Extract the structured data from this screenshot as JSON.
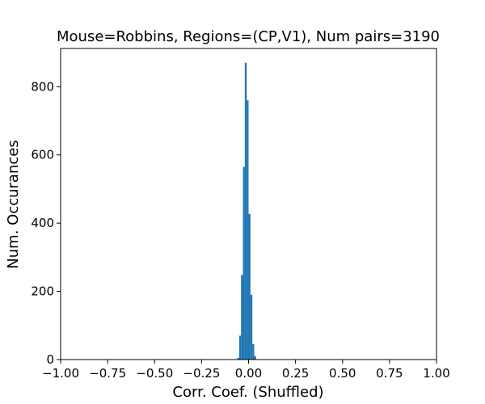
{
  "chart_data": {
    "type": "bar",
    "title": "Mouse=Robbins, Regions=(CP,V1), Num pairs=3190",
    "xlabel": "Corr. Coef. (Shuffled)",
    "ylabel": "Num. Occurances",
    "xlim": [
      -1.0,
      1.0
    ],
    "ylim": [
      0,
      912
    ],
    "grid": false,
    "bar_color": "#1f77b4",
    "bin_width": 0.01,
    "xticks": [
      -1.0,
      -0.75,
      -0.5,
      -0.25,
      0.0,
      0.25,
      0.5,
      0.75,
      1.0
    ],
    "xtick_labels": [
      "−1.00",
      "−0.75",
      "−0.50",
      "−0.25",
      "0.00",
      "0.25",
      "0.50",
      "0.75",
      "1.00"
    ],
    "yticks": [
      0,
      200,
      400,
      600,
      800
    ],
    "ytick_labels": [
      "0",
      "200",
      "400",
      "600",
      "800"
    ],
    "bins": [
      {
        "x0": -0.06,
        "x1": -0.05,
        "count": 5
      },
      {
        "x0": -0.05,
        "x1": -0.04,
        "count": 70
      },
      {
        "x0": -0.04,
        "x1": -0.03,
        "count": 248
      },
      {
        "x0": -0.03,
        "x1": -0.02,
        "count": 565
      },
      {
        "x0": -0.02,
        "x1": -0.01,
        "count": 870
      },
      {
        "x0": -0.01,
        "x1": 0.0,
        "count": 760
      },
      {
        "x0": 0.0,
        "x1": 0.01,
        "count": 427
      },
      {
        "x0": 0.01,
        "x1": 0.02,
        "count": 190
      },
      {
        "x0": 0.02,
        "x1": 0.03,
        "count": 45
      },
      {
        "x0": 0.03,
        "x1": 0.04,
        "count": 10
      }
    ]
  }
}
